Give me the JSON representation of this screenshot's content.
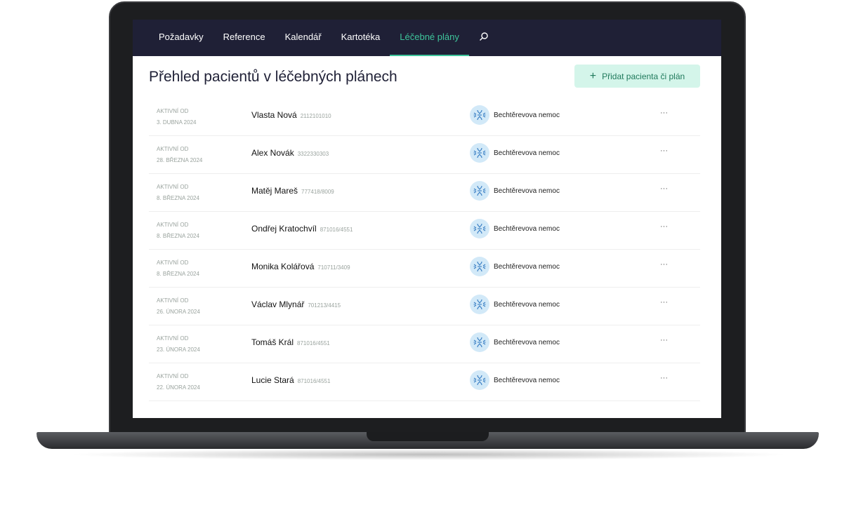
{
  "nav": {
    "items": [
      {
        "label": "Požadavky"
      },
      {
        "label": "Reference"
      },
      {
        "label": "Kalendář"
      },
      {
        "label": "Kartotéka"
      },
      {
        "label": "Léčebné plány",
        "active": true
      }
    ],
    "search_icon": "search-icon"
  },
  "page": {
    "title": "Přehled pacientů v léčebných plánech",
    "add_button": "Přidat pacienta či plán",
    "add_icon": "plus-icon"
  },
  "colors": {
    "nav_bg": "#1f2036",
    "accent": "#3ec49b",
    "button_bg": "#d4f5ea"
  },
  "rows": [
    {
      "since_label": "AKTIVNÍ OD",
      "date": "3. DUBNA 2024",
      "name": "Vlasta Nová",
      "id": "2112101010",
      "diagnosis": "Bechtěrevova nemoc",
      "more": "···"
    },
    {
      "since_label": "AKTIVNÍ OD",
      "date": "28. BŘEZNA 2024",
      "name": "Alex Novák",
      "id": "3322330303",
      "diagnosis": "Bechtěrevova nemoc",
      "more": "···"
    },
    {
      "since_label": "AKTIVNÍ OD",
      "date": "8. BŘEZNA 2024",
      "name": "Matěj Mareš",
      "id": "777418/8009",
      "diagnosis": "Bechtěrevova nemoc",
      "more": "···"
    },
    {
      "since_label": "AKTIVNÍ OD",
      "date": "8. BŘEZNA 2024",
      "name": "Ondřej Kratochvíl",
      "id": "871016/4551",
      "diagnosis": "Bechtěrevova nemoc",
      "more": "···"
    },
    {
      "since_label": "AKTIVNÍ OD",
      "date": "8. BŘEZNA 2024",
      "name": "Monika Kolářová",
      "id": "710711/3409",
      "diagnosis": "Bechtěrevova nemoc",
      "more": "···"
    },
    {
      "since_label": "AKTIVNÍ OD",
      "date": "26. ÚNORA 2024",
      "name": "Václav Mlynář",
      "id": "701213/4415",
      "diagnosis": "Bechtěrevova nemoc",
      "more": "···"
    },
    {
      "since_label": "AKTIVNÍ OD",
      "date": "23. ÚNORA 2024",
      "name": "Tomáš Král",
      "id": "871016/4551",
      "diagnosis": "Bechtěrevova nemoc",
      "more": "···"
    },
    {
      "since_label": "AKTIVNÍ OD",
      "date": "22. ÚNORA 2024",
      "name": "Lucie Stará",
      "id": "871016/4551",
      "diagnosis": "Bechtěrevova nemoc",
      "more": "···"
    }
  ]
}
